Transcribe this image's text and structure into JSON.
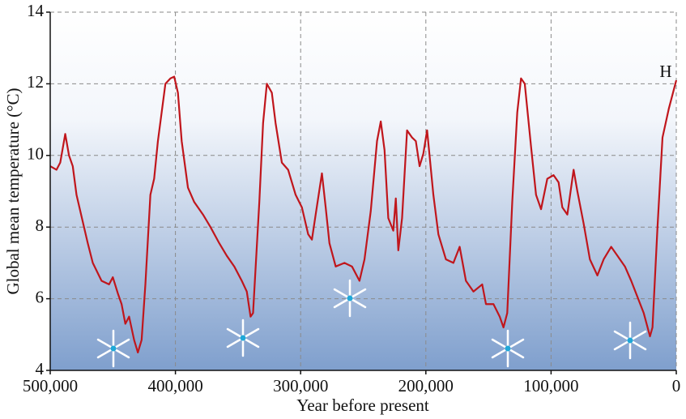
{
  "chart_data": {
    "type": "line",
    "ylabel": "Global mean temperature (°C)",
    "xlabel": "Year before present",
    "annotation": "H",
    "color": "#c0161c",
    "grid": true,
    "xlim": [
      500000,
      0
    ],
    "ylim": [
      4,
      14
    ],
    "xticks": [
      {
        "value": 500000,
        "label": "500,000"
      },
      {
        "value": 400000,
        "label": "400,000"
      },
      {
        "value": 300000,
        "label": "300,000"
      },
      {
        "value": 200000,
        "label": "200,000"
      },
      {
        "value": 100000,
        "label": "100,000"
      },
      0
    ],
    "yticks": [
      4,
      6,
      8,
      10,
      12,
      14
    ],
    "x": [
      500000,
      495000,
      492000,
      488000,
      485000,
      482000,
      479000,
      475000,
      470000,
      466000,
      459000,
      453000,
      450000,
      446000,
      443000,
      440000,
      437000,
      433000,
      430000,
      427000,
      424000,
      420000,
      417000,
      414000,
      411000,
      408000,
      404000,
      401000,
      398000,
      395000,
      390000,
      385000,
      378000,
      372000,
      365000,
      359000,
      353000,
      347000,
      343000,
      340000,
      338000,
      333000,
      330000,
      327000,
      323000,
      320000,
      315000,
      310000,
      304000,
      299000,
      294000,
      291000,
      288000,
      283000,
      280000,
      277000,
      272000,
      265000,
      259000,
      253000,
      249000,
      244000,
      239000,
      236000,
      233000,
      230000,
      226000,
      224000,
      222000,
      219000,
      215000,
      211000,
      208000,
      205000,
      202000,
      199000,
      194000,
      190000,
      184000,
      178000,
      173000,
      168000,
      162000,
      155000,
      152000,
      146000,
      141000,
      138000,
      135000,
      131000,
      127000,
      124000,
      121000,
      116000,
      112000,
      108000,
      103000,
      98000,
      94000,
      91000,
      87000,
      82000,
      79000,
      74000,
      69000,
      63000,
      58000,
      52000,
      45000,
      41000,
      36000,
      31000,
      26000,
      21000,
      19000,
      15000,
      11000,
      6000,
      0
    ],
    "values": [
      9.7,
      9.6,
      9.8,
      10.6,
      10.0,
      9.7,
      8.9,
      8.3,
      7.55,
      7.0,
      6.5,
      6.4,
      6.6,
      6.15,
      5.85,
      5.3,
      5.5,
      4.85,
      4.5,
      4.85,
      6.4,
      8.9,
      9.35,
      10.4,
      11.2,
      12.0,
      12.15,
      12.2,
      11.75,
      10.4,
      9.1,
      8.7,
      8.35,
      8.0,
      7.55,
      7.2,
      6.9,
      6.5,
      6.2,
      5.5,
      5.6,
      8.7,
      10.9,
      12.0,
      11.75,
      10.9,
      9.8,
      9.6,
      8.9,
      8.55,
      7.8,
      7.65,
      8.35,
      9.5,
      8.55,
      7.55,
      6.9,
      7.0,
      6.9,
      6.5,
      7.1,
      8.45,
      10.4,
      10.95,
      10.15,
      8.25,
      7.9,
      8.8,
      7.35,
      8.25,
      10.7,
      10.5,
      10.4,
      9.7,
      10.05,
      10.7,
      8.9,
      7.8,
      7.1,
      7.0,
      7.45,
      6.5,
      6.2,
      6.4,
      5.85,
      5.85,
      5.5,
      5.2,
      5.6,
      8.7,
      11.2,
      12.15,
      12.0,
      10.25,
      8.9,
      8.5,
      9.35,
      9.45,
      9.25,
      8.55,
      8.35,
      9.6,
      9.0,
      8.1,
      7.1,
      6.65,
      7.1,
      7.45,
      7.1,
      6.9,
      6.5,
      6.05,
      5.6,
      4.95,
      5.2,
      8.0,
      10.5,
      11.3,
      12.1
    ]
  }
}
